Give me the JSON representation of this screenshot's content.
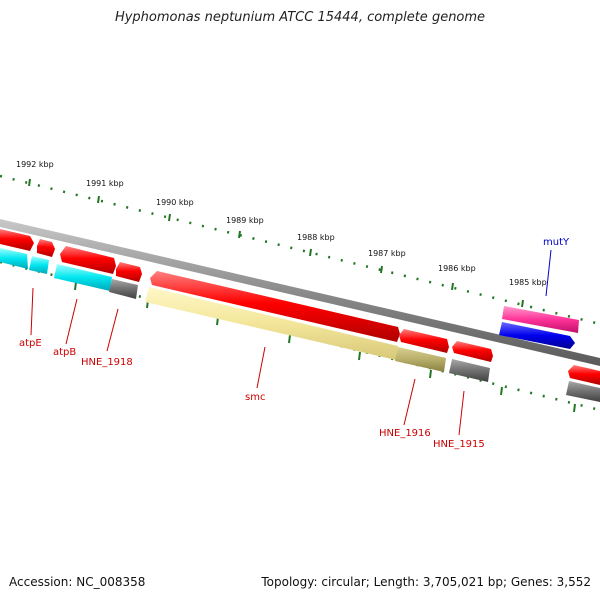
{
  "title": "Hyphomonas neptunium ATCC 15444, complete genome",
  "footer": {
    "accession": "Accession: NC_008358",
    "summary": "Topology: circular; Length: 3,705,021 bp; Genes: 3,552"
  },
  "ruler": {
    "labels": [
      "1992 kbp",
      "1991 kbp",
      "1990 kbp",
      "1989 kbp",
      "1988 kbp",
      "1987 kbp",
      "1986 kbp",
      "1985 kbp"
    ]
  },
  "genes": [
    {
      "id": "atpE",
      "label": "atpE",
      "color": "#cc0000"
    },
    {
      "id": "atpB",
      "label": "atpB",
      "color": "#cc0000"
    },
    {
      "id": "HNE_1918",
      "label": "HNE_1918",
      "color": "#cc0000"
    },
    {
      "id": "smc",
      "label": "smc",
      "color": "#cc0000"
    },
    {
      "id": "HNE_1916",
      "label": "HNE_1916",
      "color": "#cc0000"
    },
    {
      "id": "HNE_1915",
      "label": "HNE_1915",
      "color": "#cc0000"
    },
    {
      "id": "mutY",
      "label": "mutY",
      "color": "#0000cc"
    }
  ],
  "colors": {
    "backbone": "#888888",
    "cds": "#ff0000",
    "cyan_feature": "#00e0ee",
    "yellow_feature": "#f3e6a0",
    "olive_feature": "#b8ae6a",
    "gray_feature": "#707070",
    "magenta_feature": "#ff3399",
    "blue_feature": "#0000ee",
    "tick": "#227722"
  }
}
